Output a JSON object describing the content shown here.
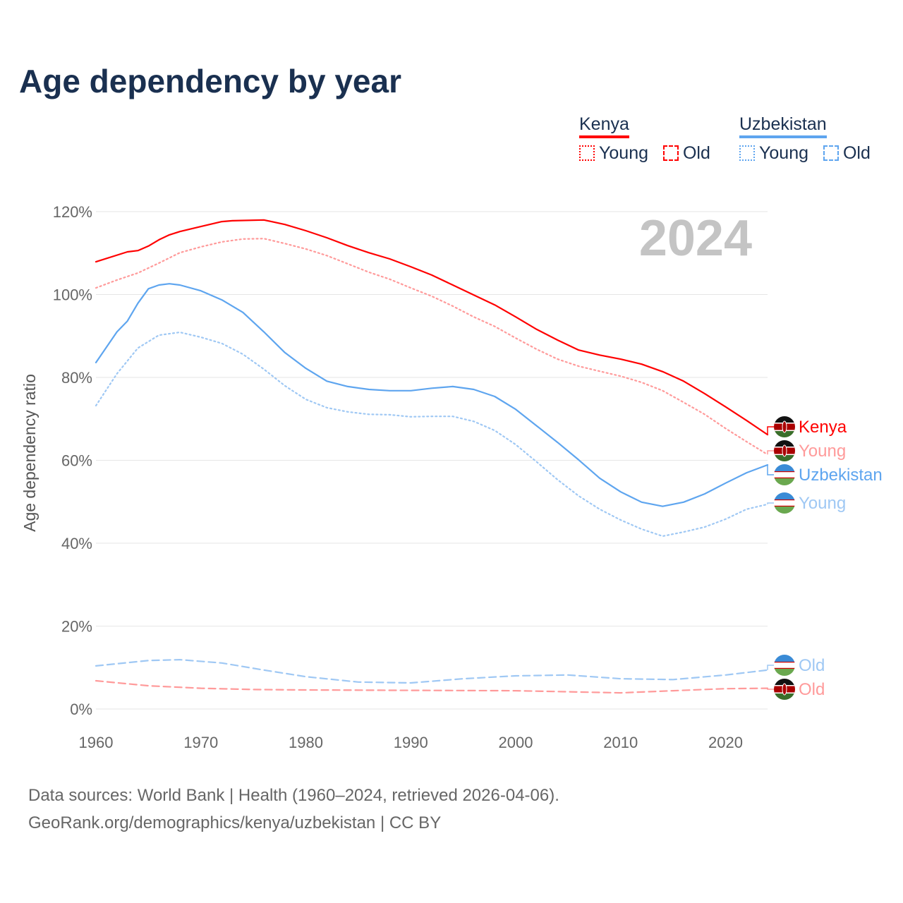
{
  "title": "Age dependency by year",
  "legend": {
    "groups": [
      {
        "name": "Kenya",
        "color": "#ff0000",
        "young": "Young",
        "old": "Old"
      },
      {
        "name": "Uzbekistan",
        "color": "#5ea5ef",
        "young": "Young",
        "old": "Old"
      }
    ]
  },
  "footer": {
    "line1": "Data sources: World Bank | Health (1960–2024, retrieved 2026-04-06).",
    "line2": "GeoRank.org/demographics/kenya/uzbekistan | CC BY"
  },
  "chart_data": {
    "type": "line",
    "title": "Age dependency by year",
    "ylabel": "Age dependency ratio",
    "xlabel": "",
    "year_watermark": "2024",
    "xlim": [
      1960,
      2024
    ],
    "ylim": [
      0,
      120
    ],
    "xticks": [
      "1960",
      "1970",
      "1980",
      "1990",
      "2000",
      "2010",
      "2020"
    ],
    "yticks": [
      "0%",
      "20%",
      "40%",
      "60%",
      "80%",
      "100%",
      "120%"
    ],
    "grid": true,
    "series": [
      {
        "name": "Kenya",
        "label": "Kenya",
        "color": "#ff0000",
        "dash": "solid",
        "flag": "kenya",
        "x": [
          1960,
          1963,
          1964,
          1965,
          1966,
          1967,
          1968,
          1970,
          1972,
          1973,
          1976,
          1978,
          1980,
          1982,
          1984,
          1986,
          1988,
          1990,
          1992,
          1994,
          1996,
          1998,
          2000,
          2002,
          2004,
          2006,
          2008,
          2010,
          2012,
          2014,
          2016,
          2018,
          2020,
          2022,
          2024
        ],
        "y": [
          107.9,
          110.3,
          110.6,
          111.7,
          113.2,
          114.4,
          115.2,
          116.4,
          117.6,
          117.8,
          118,
          116.9,
          115.4,
          113.7,
          111.8,
          110.1,
          108.6,
          106.7,
          104.7,
          102.3,
          99.9,
          97.5,
          94.6,
          91.6,
          89,
          86.6,
          85.4,
          84.4,
          83.2,
          81.4,
          79.1,
          76.1,
          72.9,
          69.6,
          66.2
        ]
      },
      {
        "name": "Kenya Young",
        "label": "Young",
        "color": "#ff9a9a",
        "dash": "dotted",
        "flag": "kenya",
        "x": [
          1960,
          1962,
          1964,
          1966,
          1968,
          1970,
          1972,
          1974,
          1976,
          1978,
          1980,
          1982,
          1984,
          1986,
          1988,
          1990,
          1992,
          1994,
          1996,
          1998,
          2000,
          2002,
          2004,
          2006,
          2008,
          2010,
          2012,
          2014,
          2016,
          2018,
          2020,
          2022,
          2024
        ],
        "y": [
          101.6,
          103.5,
          105.2,
          107.6,
          110.1,
          111.5,
          112.7,
          113.4,
          113.5,
          112.3,
          111,
          109.4,
          107.4,
          105.4,
          103.7,
          101.6,
          99.6,
          97.2,
          94.6,
          92.3,
          89.5,
          86.8,
          84.4,
          82.7,
          81.5,
          80.3,
          78.8,
          76.8,
          74,
          71.1,
          67.7,
          64.5,
          61.4
        ]
      },
      {
        "name": "Uzbekistan",
        "label": "Uzbekistan",
        "color": "#5ea5ef",
        "dash": "solid",
        "flag": "uzbekistan",
        "x": [
          1960,
          1962,
          1963,
          1964,
          1965,
          1966,
          1967,
          1968,
          1970,
          1972,
          1974,
          1976,
          1978,
          1980,
          1982,
          1984,
          1986,
          1988,
          1990,
          1992,
          1994,
          1996,
          1998,
          2000,
          2002,
          2004,
          2006,
          2008,
          2010,
          2012,
          2014,
          2016,
          2018,
          2020,
          2022,
          2024
        ],
        "y": [
          83.6,
          91,
          93.6,
          97.9,
          101.4,
          102.3,
          102.6,
          102.3,
          100.9,
          98.7,
          95.7,
          91,
          86,
          82.2,
          79.1,
          77.8,
          77.1,
          76.8,
          76.8,
          77.4,
          77.8,
          77.1,
          75.4,
          72.3,
          68.3,
          64.3,
          60.1,
          55.7,
          52.4,
          49.9,
          48.9,
          49.9,
          51.9,
          54.5,
          57,
          58.9
        ]
      },
      {
        "name": "Uzbekistan Young",
        "label": "Young",
        "color": "#9fc8f4",
        "dash": "dotted",
        "flag": "uzbekistan",
        "x": [
          1960,
          1962,
          1964,
          1966,
          1968,
          1970,
          1972,
          1974,
          1976,
          1978,
          1980,
          1982,
          1984,
          1986,
          1988,
          1990,
          1992,
          1994,
          1996,
          1998,
          2000,
          2002,
          2004,
          2006,
          2008,
          2010,
          2012,
          2014,
          2016,
          2018,
          2020,
          2022,
          2024
        ],
        "y": [
          73.2,
          80.9,
          87.1,
          90.2,
          90.9,
          89.7,
          88.2,
          85.6,
          82,
          78,
          74.7,
          72.7,
          71.7,
          71.1,
          71,
          70.5,
          70.6,
          70.6,
          69.4,
          67.2,
          63.8,
          59.6,
          55.3,
          51.4,
          48.2,
          45.6,
          43.4,
          41.7,
          42.7,
          43.9,
          45.8,
          48.2,
          49.4
        ]
      },
      {
        "name": "Uzbekistan Old",
        "label": "Old",
        "color": "#9fc8f4",
        "dash": "dashed",
        "flag": "uzbekistan",
        "x": [
          1960,
          1965,
          1968,
          1972,
          1976,
          1980,
          1985,
          1990,
          1995,
          2000,
          2005,
          2010,
          2015,
          2020,
          2024
        ],
        "y": [
          10.4,
          11.7,
          11.9,
          11.1,
          9.4,
          7.8,
          6.5,
          6.3,
          7.3,
          8,
          8.2,
          7.3,
          7.1,
          8.2,
          9.4
        ]
      },
      {
        "name": "Kenya Old",
        "label": "Old",
        "color": "#ff9a9a",
        "dash": "dashed",
        "flag": "kenya",
        "x": [
          1960,
          1965,
          1970,
          1975,
          1980,
          1990,
          2000,
          2010,
          2015,
          2020,
          2024
        ],
        "y": [
          6.8,
          5.6,
          5.0,
          4.7,
          4.6,
          4.5,
          4.4,
          3.9,
          4.4,
          4.9,
          5.0
        ]
      }
    ]
  }
}
